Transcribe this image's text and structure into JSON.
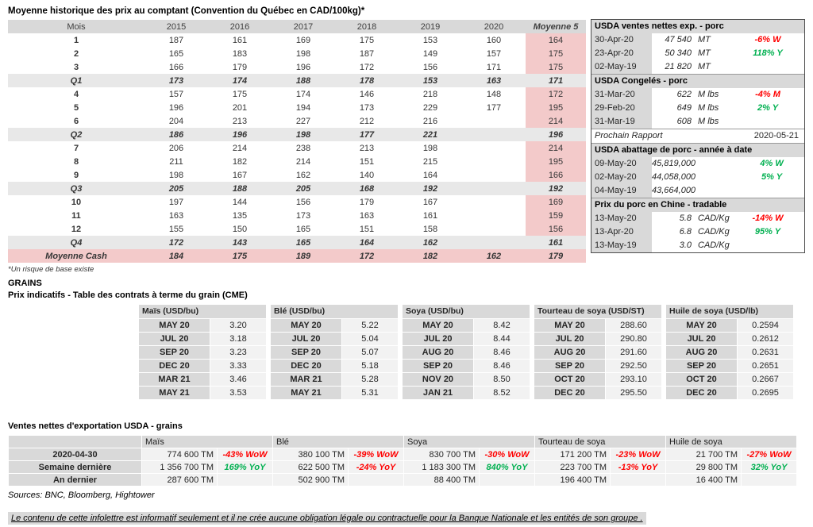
{
  "page": {
    "title": "Moyenne historique des prix au comptant (Convention du Québec en CAD/100kg)*",
    "footnote": "*Un risque de base existe",
    "grains_title": "GRAINS",
    "futures_title": "Prix indicatifs - Table des contrats à terme du grain (CME)",
    "exports_title": "Ventes nettes d'exportation USDA - grains",
    "sources": "Sources: BNC, Bloomberg, Hightower",
    "disclaimer": "Le contenu de cette infolettre est informatif seulement et il ne crée aucune obligation légale ou contractuelle pour la Banque Nationale et les entités de son groupe ."
  },
  "colors": {
    "header_gray": "#d9d9d9",
    "quarter_gray": "#e8e8e8",
    "highlight_pink": "#f3caca",
    "value_light": "#f2f2f2",
    "negative_red": "#ff0000",
    "positive_green": "#00b050"
  },
  "price_table": {
    "headers": [
      "Mois",
      "2015",
      "2016",
      "2017",
      "2018",
      "2019",
      "2020",
      "Moyenne 5"
    ],
    "rows": [
      {
        "label": "1",
        "style": "month",
        "values": [
          "187",
          "161",
          "169",
          "175",
          "153",
          "160"
        ],
        "avg": "164"
      },
      {
        "label": "2",
        "style": "month",
        "values": [
          "165",
          "183",
          "198",
          "187",
          "149",
          "157"
        ],
        "avg": "175"
      },
      {
        "label": "3",
        "style": "month",
        "values": [
          "166",
          "179",
          "196",
          "172",
          "156",
          "171"
        ],
        "avg": "175"
      },
      {
        "label": "Q1",
        "style": "quarter",
        "values": [
          "173",
          "174",
          "188",
          "178",
          "153",
          "163"
        ],
        "avg": "171"
      },
      {
        "label": "4",
        "style": "month",
        "values": [
          "157",
          "175",
          "174",
          "146",
          "218",
          "148"
        ],
        "avg": "172"
      },
      {
        "label": "5",
        "style": "month",
        "values": [
          "196",
          "201",
          "194",
          "173",
          "229",
          "177"
        ],
        "avg": "195"
      },
      {
        "label": "6",
        "style": "month",
        "values": [
          "204",
          "213",
          "227",
          "212",
          "216",
          ""
        ],
        "avg": "214"
      },
      {
        "label": "Q2",
        "style": "quarter",
        "values": [
          "186",
          "196",
          "198",
          "177",
          "221",
          ""
        ],
        "avg": "196"
      },
      {
        "label": "7",
        "style": "month",
        "values": [
          "206",
          "214",
          "238",
          "213",
          "198",
          ""
        ],
        "avg": "214"
      },
      {
        "label": "8",
        "style": "month",
        "values": [
          "211",
          "182",
          "214",
          "151",
          "215",
          ""
        ],
        "avg": "195"
      },
      {
        "label": "9",
        "style": "month",
        "values": [
          "198",
          "167",
          "162",
          "140",
          "164",
          ""
        ],
        "avg": "166"
      },
      {
        "label": "Q3",
        "style": "quarter",
        "values": [
          "205",
          "188",
          "205",
          "168",
          "192",
          ""
        ],
        "avg": "192"
      },
      {
        "label": "10",
        "style": "month",
        "values": [
          "197",
          "144",
          "156",
          "179",
          "167",
          ""
        ],
        "avg": "169"
      },
      {
        "label": "11",
        "style": "month",
        "values": [
          "163",
          "135",
          "173",
          "163",
          "161",
          ""
        ],
        "avg": "159"
      },
      {
        "label": "12",
        "style": "month",
        "values": [
          "155",
          "150",
          "165",
          "151",
          "158",
          ""
        ],
        "avg": "156"
      },
      {
        "label": "Q4",
        "style": "quarter",
        "values": [
          "172",
          "143",
          "165",
          "164",
          "162",
          ""
        ],
        "avg": "161"
      },
      {
        "label": "Moyenne Cash",
        "style": "total",
        "values": [
          "184",
          "175",
          "189",
          "172",
          "182",
          "162"
        ],
        "avg": "179"
      }
    ]
  },
  "usda_panel": {
    "sections": [
      {
        "header": "USDA ventes nettes exp. - porc",
        "rows": [
          {
            "date": "30-Apr-20",
            "value": "47 540",
            "unit": "MT",
            "pct": "-6% W",
            "trend": "down"
          },
          {
            "date": "23-Apr-20",
            "value": "50 340",
            "unit": "MT",
            "pct": "118% Y",
            "trend": "up"
          },
          {
            "date": "02-May-19",
            "value": "21 820",
            "unit": "MT",
            "pct": "",
            "trend": ""
          }
        ]
      },
      {
        "header": "USDA Congelés - porc",
        "rows": [
          {
            "date": "31-Mar-20",
            "value": "622",
            "unit": "M lbs",
            "pct": "-4% M",
            "trend": "down"
          },
          {
            "date": "29-Feb-20",
            "value": "649",
            "unit": "M lbs",
            "pct": "2% Y",
            "trend": "up"
          },
          {
            "date": "31-Mar-19",
            "value": "608",
            "unit": "M lbs",
            "pct": "",
            "trend": ""
          }
        ]
      },
      {
        "type": "report",
        "label": "Prochain Rapport",
        "date": "2020-05-21"
      },
      {
        "header": "USDA abattage de porc - année à date",
        "rows": [
          {
            "date": "09-May-20",
            "value": "45,819,000",
            "unit": "",
            "pct": "4% W",
            "trend": "up"
          },
          {
            "date": "02-May-20",
            "value": "44,058,000",
            "unit": "",
            "pct": "5% Y",
            "trend": "up"
          },
          {
            "date": "04-May-19",
            "value": "43,664,000",
            "unit": "",
            "pct": "",
            "trend": ""
          }
        ]
      },
      {
        "header": "Prix du porc en Chine - tradable",
        "rows": [
          {
            "date": "13-May-20",
            "value": "5.8",
            "unit": "CAD/Kg",
            "pct": "-14% W",
            "trend": "down"
          },
          {
            "date": "13-Apr-20",
            "value": "6.8",
            "unit": "CAD/Kg",
            "pct": "95% Y",
            "trend": "up"
          },
          {
            "date": "13-May-19",
            "value": "3.0",
            "unit": "CAD/Kg",
            "pct": "",
            "trend": ""
          }
        ]
      }
    ]
  },
  "futures": {
    "tables": [
      {
        "title": "Maïs (USD/bu)",
        "rows": [
          [
            "MAY 20",
            "3.20"
          ],
          [
            "JUL 20",
            "3.18"
          ],
          [
            "SEP 20",
            "3.23"
          ],
          [
            "DEC 20",
            "3.33"
          ],
          [
            "MAR 21",
            "3.46"
          ],
          [
            "MAY 21",
            "3.53"
          ]
        ]
      },
      {
        "title": "Blé (USD/bu)",
        "rows": [
          [
            "MAY 20",
            "5.22"
          ],
          [
            "JUL 20",
            "5.04"
          ],
          [
            "SEP 20",
            "5.07"
          ],
          [
            "DEC 20",
            "5.18"
          ],
          [
            "MAR 21",
            "5.28"
          ],
          [
            "MAY 21",
            "5.31"
          ]
        ]
      },
      {
        "title": "Soya (USD/bu)",
        "rows": [
          [
            "MAY 20",
            "8.42"
          ],
          [
            "JUL 20",
            "8.44"
          ],
          [
            "AUG 20",
            "8.46"
          ],
          [
            "SEP 20",
            "8.46"
          ],
          [
            "NOV 20",
            "8.50"
          ],
          [
            "JAN 21",
            "8.52"
          ]
        ]
      },
      {
        "title": "Tourteau de soya (USD/ST)",
        "rows": [
          [
            "MAY 20",
            "288.60"
          ],
          [
            "JUL 20",
            "290.80"
          ],
          [
            "AUG 20",
            "291.60"
          ],
          [
            "SEP 20",
            "292.50"
          ],
          [
            "OCT 20",
            "293.10"
          ],
          [
            "DEC 20",
            "295.50"
          ]
        ]
      },
      {
        "title": "Huile de soya (USD/lb)",
        "rows": [
          [
            "MAY 20",
            "0.2594"
          ],
          [
            "JUL 20",
            "0.2612"
          ],
          [
            "AUG 20",
            "0.2631"
          ],
          [
            "SEP 20",
            "0.2651"
          ],
          [
            "OCT 20",
            "0.2667"
          ],
          [
            "DEC 20",
            "0.2695"
          ]
        ]
      }
    ]
  },
  "exports": {
    "commodities": [
      "Maïs",
      "Blé",
      "Soya",
      "Tourteau de soya",
      "Huile de soya"
    ],
    "rows": [
      {
        "label": "2020-04-30",
        "cells": [
          {
            "value": "774 600 TM",
            "pct": "-43% WoW",
            "trend": "down"
          },
          {
            "value": "380 100 TM",
            "pct": "-39% WoW",
            "trend": "down"
          },
          {
            "value": "830 700 TM",
            "pct": "-30% WoW",
            "trend": "down"
          },
          {
            "value": "171 200 TM",
            "pct": "-23% WoW",
            "trend": "down"
          },
          {
            "value": "21 700 TM",
            "pct": "-27% WoW",
            "trend": "down"
          }
        ]
      },
      {
        "label": "Semaine dernière",
        "cells": [
          {
            "value": "1 356 700 TM",
            "pct": "169% YoY",
            "trend": "up"
          },
          {
            "value": "622 500 TM",
            "pct": "-24% YoY",
            "trend": "down"
          },
          {
            "value": "1 183 300 TM",
            "pct": "840% YoY",
            "trend": "up"
          },
          {
            "value": "223 700 TM",
            "pct": "-13% YoY",
            "trend": "down"
          },
          {
            "value": "29 800 TM",
            "pct": "32% YoY",
            "trend": "up"
          }
        ]
      },
      {
        "label": "An dernier",
        "cells": [
          {
            "value": "287 600 TM",
            "pct": "",
            "trend": ""
          },
          {
            "value": "502 900 TM",
            "pct": "",
            "trend": ""
          },
          {
            "value": "88 400 TM",
            "pct": "",
            "trend": ""
          },
          {
            "value": "196 400 TM",
            "pct": "",
            "trend": ""
          },
          {
            "value": "16 400 TM",
            "pct": "",
            "trend": ""
          }
        ]
      }
    ]
  }
}
